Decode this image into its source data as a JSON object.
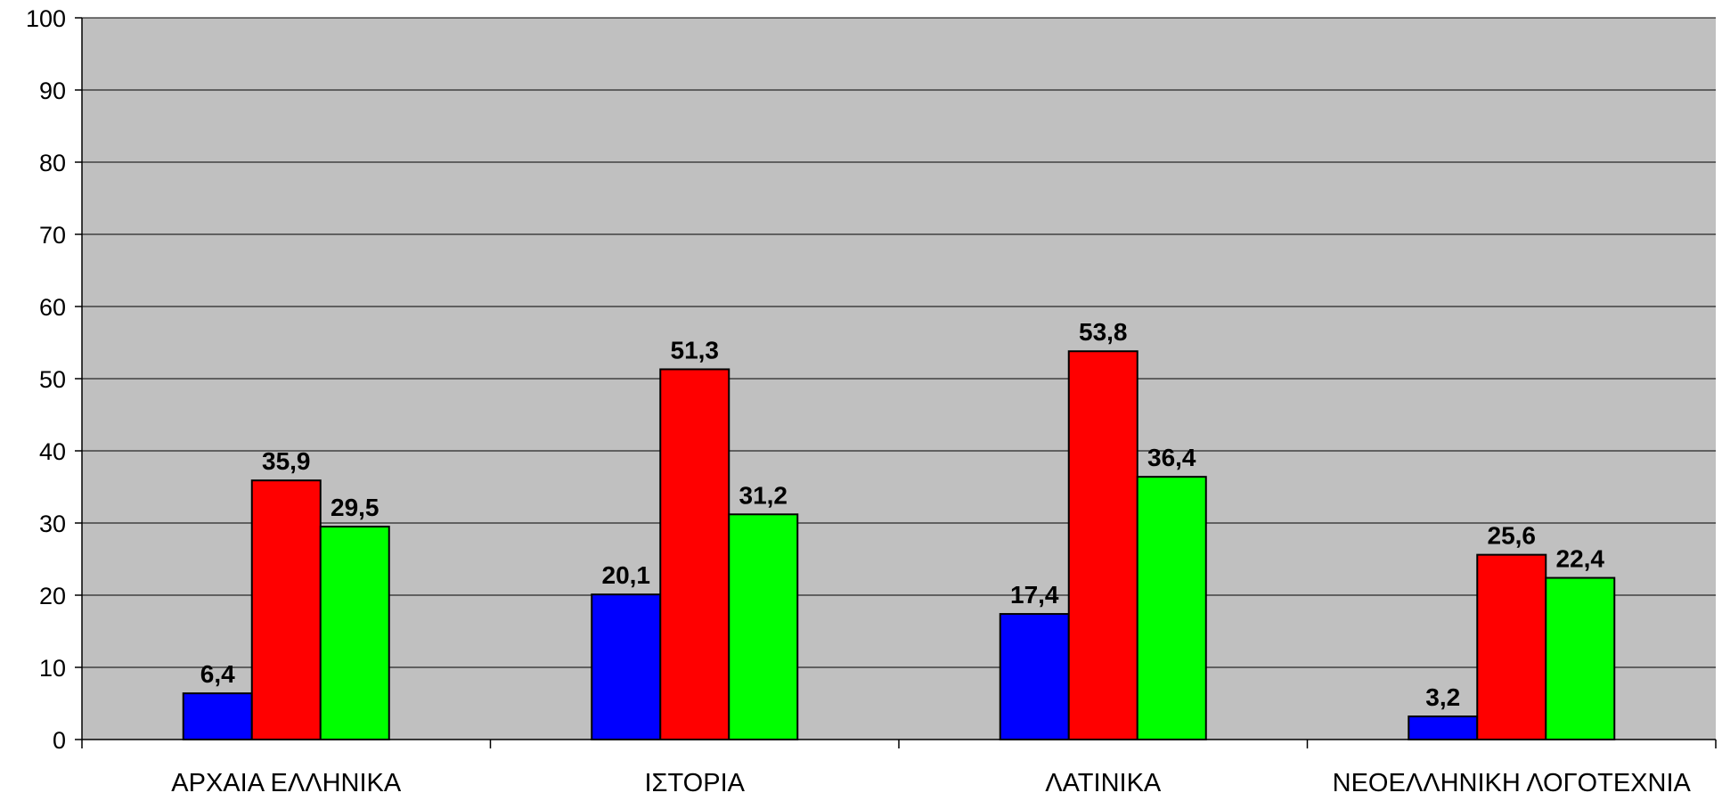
{
  "chart_data": {
    "type": "bar",
    "title": "",
    "xlabel": "",
    "ylabel": "",
    "categories": [
      "ΑΡΧΑΙΑ ΕΛΛΗΝΙΚΑ",
      "ΙΣΤΟΡΙΑ",
      "ΛΑΤΙΝΙΚΑ",
      "ΝΕΟΕΛΛΗΝΙΚΗ ΛΟΓΟΤΕΧΝΙΑ"
    ],
    "series": [
      {
        "color": "#0000FF",
        "values": [
          6.4,
          20.1,
          17.4,
          3.2
        ],
        "labels": [
          "6,4",
          "20,1",
          "17,4",
          "3,2"
        ]
      },
      {
        "color": "#FF0000",
        "values": [
          35.9,
          51.3,
          53.8,
          25.6
        ],
        "labels": [
          "35,9",
          "51,3",
          "53,8",
          "25,6"
        ]
      },
      {
        "color": "#00FF00",
        "values": [
          29.5,
          31.2,
          36.4,
          22.4
        ],
        "labels": [
          "29,5",
          "31,2",
          "36,4",
          "22,4"
        ]
      }
    ],
    "ylim": [
      0,
      100
    ],
    "yticks": [
      0,
      10,
      20,
      30,
      40,
      50,
      60,
      70,
      80,
      90,
      100
    ],
    "grid": true,
    "legend": "none",
    "plot_background": "#C0C0C0"
  }
}
